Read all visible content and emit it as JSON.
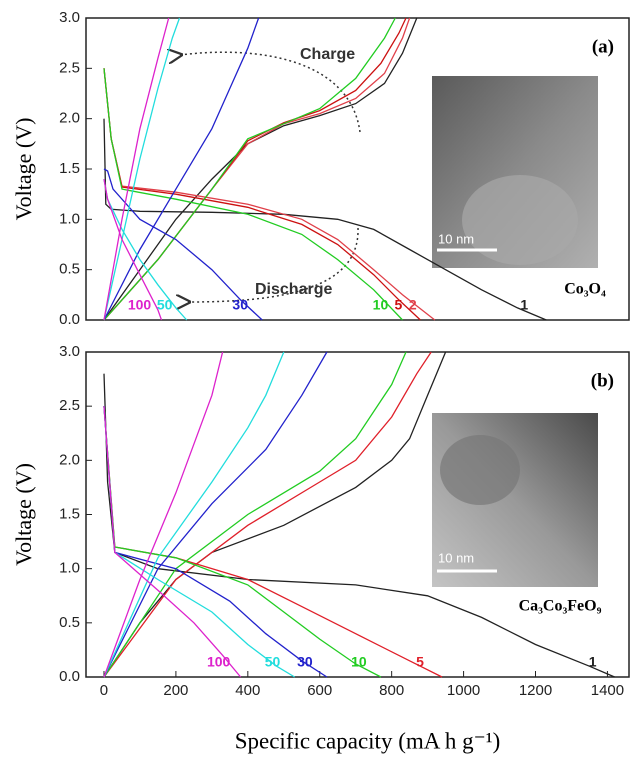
{
  "chart_data": [
    {
      "type": "line",
      "panel_label": "(a)",
      "y_label": "Voltage (V)",
      "xlim": [
        -50,
        1460
      ],
      "ylim": [
        0,
        3
      ],
      "yticks": [
        {
          "value": 0,
          "label": "0.0"
        },
        0.5,
        {
          "value": 1,
          "label": "1.0"
        },
        1.5,
        {
          "value": 2,
          "label": "2.0"
        },
        2.5,
        {
          "value": 3,
          "label": "3.0"
        }
      ],
      "annotations": [
        "Charge",
        "Discharge"
      ],
      "inset": {
        "label": "Co₃O₄",
        "scale": "10 nm"
      },
      "series": [
        {
          "name": "1",
          "color": "#222222",
          "x": [
            0,
            5,
            20,
            100,
            300,
            500,
            650,
            750,
            850,
            950,
            1050,
            1150,
            1230,
            null,
            0,
            100,
            200,
            300,
            400,
            500,
            600,
            700,
            780,
            830,
            870
          ],
          "values": [
            2.0,
            1.15,
            1.1,
            1.08,
            1.07,
            1.05,
            1.0,
            0.9,
            0.7,
            0.5,
            0.3,
            0.12,
            0.0,
            null,
            0.0,
            0.5,
            1.0,
            1.4,
            1.75,
            1.93,
            2.03,
            2.15,
            2.35,
            2.65,
            3.0
          ]
        },
        {
          "name": "2",
          "color": "#e0404a",
          "x": [
            0,
            20,
            50,
            200,
            400,
            550,
            650,
            750,
            830,
            920,
            null,
            0,
            150,
            300,
            400,
            500,
            600,
            700,
            780,
            830,
            850
          ],
          "values": [
            2.5,
            1.8,
            1.33,
            1.27,
            1.15,
            1.0,
            0.8,
            0.5,
            0.25,
            0.0,
            null,
            0.0,
            0.6,
            1.3,
            1.75,
            1.95,
            2.05,
            2.2,
            2.45,
            2.8,
            3.0
          ]
        },
        {
          "name": "5",
          "color": "#cc1111",
          "x": [
            0,
            20,
            50,
            200,
            400,
            550,
            650,
            750,
            820,
            880,
            null,
            0,
            150,
            300,
            400,
            500,
            600,
            700,
            770,
            820,
            840
          ],
          "values": [
            2.5,
            1.8,
            1.32,
            1.25,
            1.12,
            0.95,
            0.75,
            0.45,
            0.2,
            0.0,
            null,
            0.0,
            0.6,
            1.3,
            1.78,
            1.96,
            2.08,
            2.28,
            2.55,
            2.85,
            3.0
          ]
        },
        {
          "name": "10",
          "color": "#22cc22",
          "x": [
            0,
            20,
            50,
            200,
            400,
            550,
            650,
            750,
            830,
            null,
            0,
            150,
            300,
            400,
            500,
            600,
            700,
            780,
            810
          ],
          "values": [
            2.5,
            1.8,
            1.3,
            1.2,
            1.05,
            0.85,
            0.6,
            0.3,
            0.0,
            null,
            0.0,
            0.6,
            1.3,
            1.8,
            1.95,
            2.1,
            2.4,
            2.8,
            3.0
          ]
        },
        {
          "name": "30",
          "color": "#2222cc",
          "x": [
            0,
            10,
            25,
            100,
            200,
            300,
            380,
            440,
            null,
            0,
            100,
            200,
            300,
            350,
            400,
            430
          ],
          "values": [
            1.5,
            1.48,
            1.3,
            1.0,
            0.8,
            0.5,
            0.2,
            0.0,
            null,
            0.0,
            0.7,
            1.3,
            1.9,
            2.3,
            2.7,
            3.0
          ]
        },
        {
          "name": "50",
          "color": "#22dddd",
          "x": [
            0,
            10,
            50,
            100,
            150,
            200,
            230,
            null,
            0,
            50,
            100,
            150,
            190,
            210
          ],
          "values": [
            1.4,
            1.2,
            0.9,
            0.6,
            0.35,
            0.12,
            0.0,
            null,
            0.0,
            0.8,
            1.6,
            2.3,
            2.8,
            3.0
          ]
        },
        {
          "name": "100",
          "color": "#dd22cc",
          "x": [
            0,
            10,
            50,
            100,
            150,
            160,
            null,
            0,
            50,
            100,
            150,
            180
          ],
          "values": [
            1.4,
            1.2,
            0.8,
            0.45,
            0.1,
            0.0,
            null,
            0.0,
            1.0,
            1.9,
            2.6,
            3.0
          ]
        }
      ]
    },
    {
      "type": "line",
      "panel_label": "(b)",
      "y_label": "Voltage (V)",
      "x_label": "Specific capacity (mA h g⁻¹)",
      "xlim": [
        -50,
        1460
      ],
      "ylim": [
        0,
        3
      ],
      "xticks": [
        0,
        200,
        400,
        600,
        800,
        1000,
        1200,
        1400
      ],
      "yticks": [
        {
          "value": 0,
          "label": "0.0"
        },
        0.5,
        {
          "value": 1,
          "label": "1.0"
        },
        1.5,
        {
          "value": 2,
          "label": "2.0"
        },
        2.5,
        {
          "value": 3,
          "label": "3.0"
        }
      ],
      "inset": {
        "label": "Ca₃Co₃FeO₉",
        "scale": "10 nm"
      },
      "series": [
        {
          "name": "1",
          "color": "#222222",
          "x": [
            0,
            10,
            30,
            150,
            400,
            700,
            900,
            1050,
            1200,
            1350,
            1420,
            null,
            0,
            100,
            200,
            300,
            500,
            700,
            800,
            850,
            900,
            950
          ],
          "values": [
            2.8,
            1.8,
            1.15,
            1.0,
            0.9,
            0.85,
            0.75,
            0.55,
            0.3,
            0.1,
            0.0,
            null,
            0.0,
            0.5,
            0.9,
            1.15,
            1.4,
            1.75,
            2.0,
            2.2,
            2.6,
            3.0
          ]
        },
        {
          "name": "5",
          "color": "#e0202a",
          "x": [
            0,
            30,
            200,
            400,
            550,
            700,
            850,
            940,
            null,
            0,
            200,
            400,
            600,
            700,
            800,
            870,
            910
          ],
          "values": [
            2.5,
            1.2,
            1.1,
            0.9,
            0.65,
            0.4,
            0.15,
            0.0,
            null,
            0.0,
            0.9,
            1.4,
            1.8,
            2.0,
            2.4,
            2.8,
            3.0
          ]
        },
        {
          "name": "10",
          "color": "#22cc22",
          "x": [
            0,
            30,
            200,
            400,
            500,
            600,
            700,
            770,
            null,
            0,
            200,
            400,
            600,
            700,
            800,
            840
          ],
          "values": [
            2.5,
            1.2,
            1.1,
            0.85,
            0.6,
            0.35,
            0.12,
            0.0,
            null,
            0.0,
            1.0,
            1.5,
            1.9,
            2.2,
            2.7,
            3.0
          ]
        },
        {
          "name": "30",
          "color": "#2222cc",
          "x": [
            0,
            30,
            200,
            350,
            450,
            550,
            620,
            null,
            0,
            150,
            300,
            450,
            550,
            620
          ],
          "values": [
            2.5,
            1.15,
            1.0,
            0.7,
            0.4,
            0.15,
            0.0,
            null,
            0.0,
            1.0,
            1.6,
            2.1,
            2.6,
            3.0
          ]
        },
        {
          "name": "50",
          "color": "#22dddd",
          "x": [
            0,
            30,
            150,
            300,
            400,
            480,
            530,
            null,
            0,
            150,
            300,
            400,
            450,
            500
          ],
          "values": [
            2.5,
            1.15,
            0.9,
            0.6,
            0.3,
            0.1,
            0.0,
            null,
            0.0,
            1.1,
            1.8,
            2.3,
            2.6,
            3.0
          ]
        },
        {
          "name": "100",
          "color": "#dd22cc",
          "x": [
            0,
            30,
            150,
            250,
            330,
            380,
            null,
            0,
            100,
            200,
            300,
            330
          ],
          "values": [
            2.5,
            1.15,
            0.8,
            0.5,
            0.2,
            0.0,
            null,
            0.0,
            0.9,
            1.7,
            2.6,
            3.0
          ]
        }
      ]
    }
  ]
}
